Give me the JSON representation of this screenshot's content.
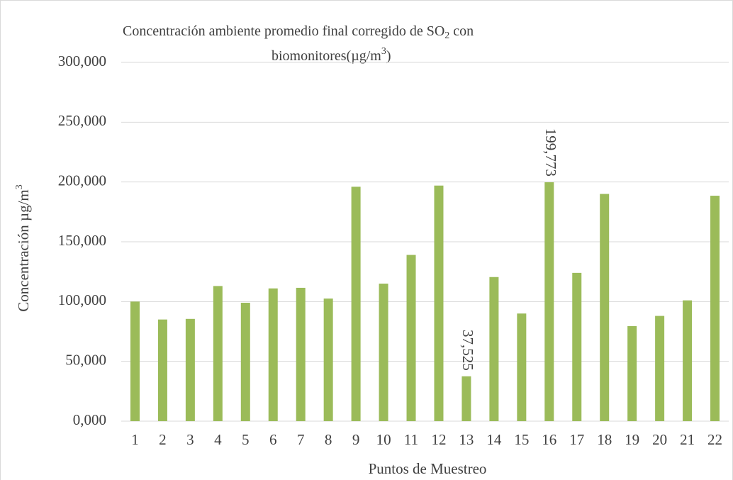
{
  "chart_data": {
    "type": "bar",
    "title": [
      [
        "Concentración ambiente promedio final corregido de SO",
        "2",
        " con"
      ],
      [
        "biomonitores(µg/m",
        "3",
        ")"
      ]
    ],
    "x_label": "Puntos de Muestreo",
    "y_label": [
      "Concentración µg/m",
      "3"
    ],
    "categories": [
      "1",
      "2",
      "3",
      "4",
      "5",
      "6",
      "7",
      "8",
      "9",
      "10",
      "11",
      "12",
      "13",
      "14",
      "15",
      "16",
      "17",
      "18",
      "19",
      "20",
      "21",
      "22"
    ],
    "values": [
      100,
      85,
      85.5,
      113,
      99,
      111,
      111.5,
      102.5,
      196,
      115,
      139,
      197,
      37.525,
      120.5,
      90,
      199.773,
      124,
      190,
      79.5,
      88,
      101,
      188.5
    ],
    "value_labels": [
      null,
      null,
      null,
      null,
      null,
      null,
      null,
      null,
      null,
      null,
      null,
      null,
      "37,525",
      null,
      null,
      "199,773",
      null,
      null,
      null,
      null,
      null,
      null
    ],
    "color": "#9bbb59",
    "ylim": [
      0,
      300
    ],
    "yticks": [
      {
        "value": 0,
        "label": "0,000"
      },
      {
        "value": 50,
        "label": "50,000"
      },
      {
        "value": 100,
        "label": "100,000"
      },
      {
        "value": 150,
        "label": "150,000"
      },
      {
        "value": 200,
        "label": "200,000"
      },
      {
        "value": 250,
        "label": "250,000"
      },
      {
        "value": 300,
        "label": "300,000"
      }
    ],
    "grid": true
  }
}
